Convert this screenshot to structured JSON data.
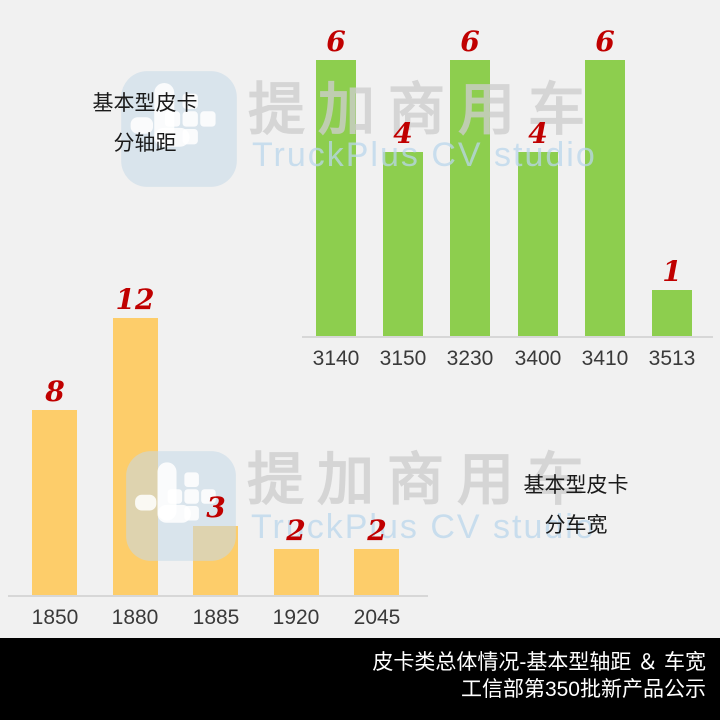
{
  "watermark": {
    "cn_text": "提加商用车",
    "en_text": "TruckPlus CV studio",
    "logo_name": "truckplus-logo"
  },
  "colors": {
    "background": "#f1f1f1",
    "green_bar": "#8DCE4E",
    "yellow_bar": "#FDCD6A",
    "value_red": "#C00000",
    "axis_line": "#d7d7d7",
    "tick_text": "#3a3a3a",
    "footer_bg": "#000000",
    "footer_text": "#ffffff"
  },
  "chart_data": [
    {
      "id": "wheelbase",
      "type": "bar",
      "title": "基本型皮卡 分轴距",
      "title_lines": [
        "基本型皮卡",
        "分轴距"
      ],
      "categories": [
        "3140",
        "3150",
        "3230",
        "3400",
        "3410",
        "3513"
      ],
      "values": [
        6,
        4,
        6,
        4,
        6,
        1
      ],
      "bar_color": "#8DCE4E",
      "value_label_color": "#C00000",
      "xlabel": "",
      "ylabel": "",
      "ylim": [
        0,
        6.6
      ],
      "grid": false,
      "legend": "none"
    },
    {
      "id": "width",
      "type": "bar",
      "title": "基本型皮卡 分车宽",
      "title_lines": [
        "基本型皮卡",
        "分车宽"
      ],
      "categories": [
        "1850",
        "1880",
        "1885",
        "1920",
        "2045"
      ],
      "values": [
        8,
        12,
        3,
        2,
        2
      ],
      "bar_color": "#FDCD6A",
      "value_label_color": "#C00000",
      "xlabel": "",
      "ylabel": "",
      "ylim": [
        0,
        13
      ],
      "grid": false,
      "legend": "none"
    }
  ],
  "footer": {
    "line1": "皮卡类总体情况-基本型轴距 ＆ 车宽",
    "line2": "工信部第350批新产品公示"
  }
}
